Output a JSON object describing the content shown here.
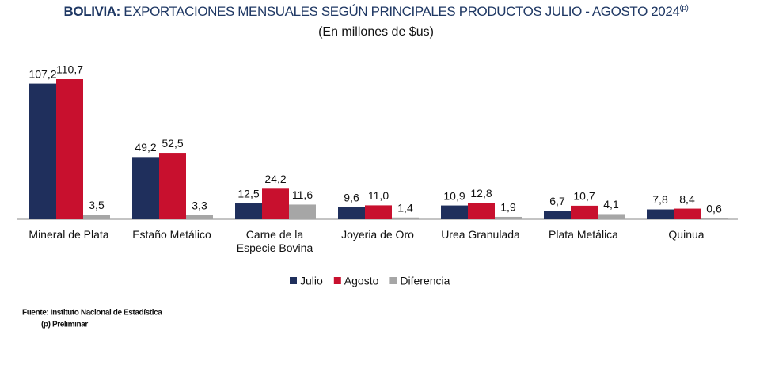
{
  "chart_data": {
    "type": "bar",
    "title": {
      "bold": "BOLIVIA:",
      "text": "EXPORTACIONES MENSUALES SEGÚN PRINCIPALES PRODUCTOS JULIO - AGOSTO 2024",
      "superscript": "(p)"
    },
    "subtitle": "(En millones de $us)",
    "categories": [
      "Mineral de Plata",
      "Estaño Metálico",
      "Carne de la Especie Bovina",
      "Joyeria de Oro",
      "Urea Granulada",
      "Plata Metálica",
      "Quinua"
    ],
    "series": [
      {
        "name": "Julio",
        "color": "#1f2f5c",
        "values": [
          107.2,
          49.2,
          12.5,
          9.6,
          10.9,
          6.7,
          7.8
        ],
        "value_labels": [
          "107,2",
          "49,2",
          "12,5",
          "9,6",
          "10,9",
          "6,7",
          "7,8"
        ]
      },
      {
        "name": "Agosto",
        "color": "#c8102e",
        "values": [
          110.7,
          52.5,
          24.2,
          11.0,
          12.8,
          10.7,
          8.4
        ],
        "value_labels": [
          "110,7",
          "52,5",
          "24,2",
          "11,0",
          "12,8",
          "10,7",
          "8,4"
        ]
      },
      {
        "name": "Diferencia",
        "color": "#a6a6a6",
        "values": [
          3.5,
          3.3,
          11.6,
          1.4,
          1.9,
          4.1,
          0.6
        ],
        "value_labels": [
          "3,5",
          "3,3",
          "11,6",
          "1,4",
          "1,9",
          "4,1",
          "0,6"
        ]
      }
    ],
    "legend": "bottom",
    "source": [
      "Fuente: Instituto Nacional de Estadística",
      "(p) Preliminar"
    ]
  }
}
